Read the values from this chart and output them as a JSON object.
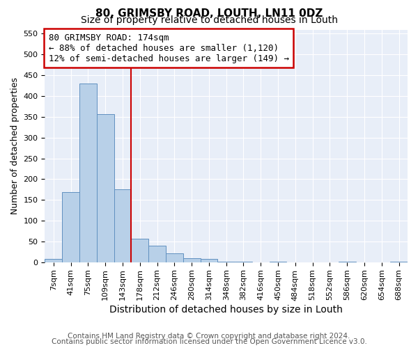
{
  "title": "80, GRIMSBY ROAD, LOUTH, LN11 0DZ",
  "subtitle": "Size of property relative to detached houses in Louth",
  "xlabel": "Distribution of detached houses by size in Louth",
  "ylabel": "Number of detached properties",
  "bin_labels": [
    "7sqm",
    "41sqm",
    "75sqm",
    "109sqm",
    "143sqm",
    "178sqm",
    "212sqm",
    "246sqm",
    "280sqm",
    "314sqm",
    "348sqm",
    "382sqm",
    "416sqm",
    "450sqm",
    "484sqm",
    "518sqm",
    "552sqm",
    "586sqm",
    "620sqm",
    "654sqm",
    "688sqm"
  ],
  "bar_values": [
    8,
    168,
    430,
    356,
    175,
    57,
    40,
    22,
    10,
    8,
    1,
    1,
    0,
    1,
    0,
    0,
    0,
    1,
    0,
    0,
    1
  ],
  "bar_color": "#b8d0e8",
  "bar_edge_color": "#6090c0",
  "vline_color": "#cc0000",
  "annotation_line1": "80 GRIMSBY ROAD: 174sqm",
  "annotation_line2": "← 88% of detached houses are smaller (1,120)",
  "annotation_line3": "12% of semi-detached houses are larger (149) →",
  "annotation_box_color": "#ffffff",
  "annotation_box_edge_color": "#cc0000",
  "ylim": [
    0,
    560
  ],
  "yticks": [
    0,
    50,
    100,
    150,
    200,
    250,
    300,
    350,
    400,
    450,
    500,
    550
  ],
  "bg_color": "#ffffff",
  "plot_bg_color": "#e8eef8",
  "grid_color": "#ffffff",
  "footer_line1": "Contains HM Land Registry data © Crown copyright and database right 2024.",
  "footer_line2": "Contains public sector information licensed under the Open Government Licence v3.0.",
  "title_fontsize": 11,
  "subtitle_fontsize": 10,
  "xlabel_fontsize": 10,
  "ylabel_fontsize": 9,
  "tick_fontsize": 8,
  "annotation_fontsize": 9,
  "footer_fontsize": 7.5
}
